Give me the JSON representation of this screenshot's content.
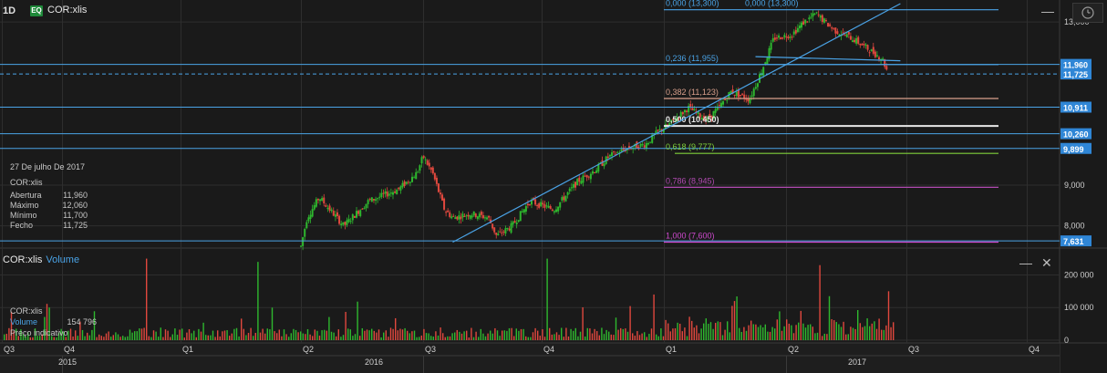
{
  "header": {
    "timeframe": "1D",
    "type_badge": "EQ",
    "symbol": "COR:xlis",
    "minimize_label": "—"
  },
  "info_panel": {
    "date": "27 De julho De 2017",
    "symbol": "COR:xlis",
    "rows": [
      {
        "label": "Abertura",
        "value": "11,960"
      },
      {
        "label": "Máximo",
        "value": "12,060"
      },
      {
        "label": "Mínimo",
        "value": "11,700"
      },
      {
        "label": "Fecho",
        "value": "11,725"
      }
    ]
  },
  "volume_panel": {
    "symbol": "COR:xlis",
    "title": "Volume",
    "symbol_label": "COR:xlis",
    "volume_label": "Volume",
    "volume_value": "154 796",
    "note": "Preço indicativo",
    "minimize_label": "—",
    "close_label": "✕"
  },
  "colors": {
    "background": "#1a1a1a",
    "grid": "#2e2e2e",
    "up": "#2eb82e",
    "down": "#e0483e",
    "hline": "#4aa3e6",
    "price_box": "#2f86d6",
    "fib0": "#4aa3e6",
    "fib236": "#4aa3e6",
    "fib382": "#d9a08c",
    "fib500": "#e8e8e8",
    "fib618": "#7fd03a",
    "fib786": "#b04ab0",
    "fib100": "#d04ad0"
  },
  "chart_data": {
    "type": "candlestick",
    "title": "COR:xlis",
    "x_axis": {
      "quarter_labels": [
        "Q3",
        "Q4",
        "Q1",
        "Q2",
        "Q3",
        "Q4",
        "Q1",
        "Q2",
        "Q3",
        "Q4"
      ],
      "year_labels": [
        "2015",
        "2016",
        "2017"
      ]
    },
    "y_axis": {
      "range": [
        7500,
        13450
      ],
      "tick_labels": [
        "13,000",
        "9,000",
        "8,000"
      ],
      "tick_values": [
        13000,
        9000,
        8000
      ]
    },
    "horizontal_levels": [
      {
        "value": 11960,
        "label": "11,960",
        "style": "solid"
      },
      {
        "value": 11725,
        "label": "11,725",
        "style": "dashed"
      },
      {
        "value": 10911,
        "label": "10,911",
        "style": "solid"
      },
      {
        "value": 10260,
        "label": "10,260",
        "style": "solid"
      },
      {
        "value": 9899,
        "label": "9,899",
        "style": "solid"
      },
      {
        "value": 7631,
        "label": "7,631",
        "style": "solid"
      }
    ],
    "fibonacci": [
      {
        "ratio": "0.000",
        "value": 13300,
        "label": "0,000 (13,300)",
        "label2": "0,000 (13,300)"
      },
      {
        "ratio": "0.236",
        "value": 11955,
        "label": "0,236 (11,955)"
      },
      {
        "ratio": "0.382",
        "value": 11123,
        "label": "0,382 (11,123)"
      },
      {
        "ratio": "0.500",
        "value": 10450,
        "label": "0,500 (10,450)"
      },
      {
        "ratio": "0.618",
        "value": 9777,
        "label": "0,618 (9,777)"
      },
      {
        "ratio": "0.786",
        "value": 8945,
        "label": "0,786 (8,945)"
      },
      {
        "ratio": "1.000",
        "value": 7600,
        "label": "1,000 (7,600)"
      }
    ],
    "trendlines": [
      {
        "from": {
          "quarter_pos": 4.25,
          "value": 7600
        },
        "to": {
          "quarter_pos": 7.95,
          "value": 13450
        }
      },
      {
        "from": {
          "quarter_pos": 6.75,
          "value": 12150
        },
        "to": {
          "quarter_pos": 7.95,
          "value": 12050
        }
      }
    ],
    "price_anchors": [
      {
        "q": 3.0,
        "v": 7500
      },
      {
        "q": 3.05,
        "v": 8200
      },
      {
        "q": 3.15,
        "v": 8700
      },
      {
        "q": 3.35,
        "v": 8000
      },
      {
        "q": 3.55,
        "v": 8600
      },
      {
        "q": 3.8,
        "v": 8900
      },
      {
        "q": 3.95,
        "v": 9300
      },
      {
        "q": 4.0,
        "v": 9700
      },
      {
        "q": 4.08,
        "v": 9300
      },
      {
        "q": 4.18,
        "v": 8400
      },
      {
        "q": 4.25,
        "v": 8200
      },
      {
        "q": 4.4,
        "v": 8300
      },
      {
        "q": 4.55,
        "v": 8200
      },
      {
        "q": 4.62,
        "v": 7750
      },
      {
        "q": 4.75,
        "v": 8000
      },
      {
        "q": 4.9,
        "v": 8600
      },
      {
        "q": 5.1,
        "v": 8400
      },
      {
        "q": 5.3,
        "v": 9100
      },
      {
        "q": 5.45,
        "v": 9400
      },
      {
        "q": 5.55,
        "v": 9700
      },
      {
        "q": 5.7,
        "v": 9900
      },
      {
        "q": 5.85,
        "v": 10000
      },
      {
        "q": 5.95,
        "v": 10300
      },
      {
        "q": 6.05,
        "v": 10500
      },
      {
        "q": 6.2,
        "v": 10900
      },
      {
        "q": 6.35,
        "v": 10600
      },
      {
        "q": 6.45,
        "v": 10900
      },
      {
        "q": 6.55,
        "v": 11300
      },
      {
        "q": 6.7,
        "v": 11100
      },
      {
        "q": 6.8,
        "v": 11800
      },
      {
        "q": 6.9,
        "v": 12600
      },
      {
        "q": 7.05,
        "v": 12700
      },
      {
        "q": 7.15,
        "v": 13000
      },
      {
        "q": 7.25,
        "v": 13200
      },
      {
        "q": 7.4,
        "v": 12800
      },
      {
        "q": 7.55,
        "v": 12600
      },
      {
        "q": 7.7,
        "v": 12300
      },
      {
        "q": 7.8,
        "v": 12100
      },
      {
        "q": 7.85,
        "v": 11725
      }
    ],
    "volume": {
      "y_tick_labels": [
        "200 000",
        "100 000",
        "0"
      ],
      "y_tick_values": [
        200000,
        100000,
        0
      ],
      "max": 260000,
      "last_value": 154796
    }
  }
}
